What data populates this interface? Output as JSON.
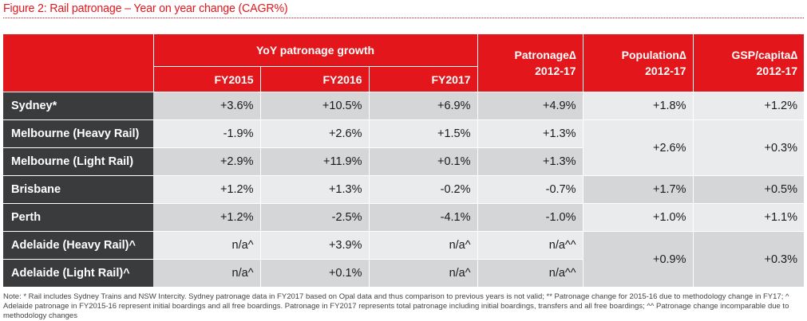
{
  "figure": {
    "title": "Figure 2: Rail patronage – Year on year change (CAGR%)"
  },
  "table": {
    "group_header": "YoY patronage growth",
    "columns": {
      "fy2015": "FY2015",
      "fy2016": "FY2016",
      "fy2017": "FY2017",
      "patronage_line1": "Patronage∆",
      "patronage_line2": "2012-17",
      "population_line1": "Population∆",
      "population_line2": "2012-17",
      "gsp_line1": "GSP/capita∆",
      "gsp_line2": "2012-17"
    },
    "rows": [
      {
        "label": "Sydney*",
        "fy2015": "+3.6%",
        "fy2016": "+10.5%",
        "fy2017": "+6.9%",
        "patronage": "+4.9%"
      },
      {
        "label": "Melbourne (Heavy Rail)",
        "fy2015": "-1.9%",
        "fy2016": "+2.6%",
        "fy2017": "+1.5%",
        "patronage": "+1.3%"
      },
      {
        "label": "Melbourne (Light Rail)",
        "fy2015": "+2.9%",
        "fy2016": "+11.9%",
        "fy2017": "+0.1%",
        "patronage": "+1.3%"
      },
      {
        "label": "Brisbane",
        "fy2015": "+1.2%",
        "fy2016": "+1.3%",
        "fy2017": "-0.2%",
        "patronage": "-0.7%"
      },
      {
        "label": "Perth",
        "fy2015": "+1.2%",
        "fy2016": "-2.5%",
        "fy2017": "-4.1%",
        "patronage": "-1.0%"
      },
      {
        "label": "Adelaide (Heavy Rail)^",
        "fy2015": "n/a^",
        "fy2016": "+3.9%",
        "fy2017": "n/a^",
        "patronage": "n/a^^"
      },
      {
        "label": "Adelaide (Light Rail)^",
        "fy2015": "n/a^",
        "fy2016": "+0.1%",
        "fy2017": "n/a^",
        "patronage": "n/a^^"
      }
    ],
    "population": {
      "sydney": "+1.8%",
      "melbourne": "+2.6%",
      "brisbane": "+1.7%",
      "perth": "+1.0%",
      "adelaide": "+0.9%"
    },
    "gsp": {
      "sydney": "+1.2%",
      "melbourne": "+0.3%",
      "brisbane": "+0.5%",
      "perth": "+1.1%",
      "adelaide": "+0.3%"
    }
  },
  "note": "Note: * Rail includes Sydney Trains and NSW Intercity. Sydney patronage data in FY2017 based on Opal data and thus comparison to previous years is not valid; ** Patronage change for 2015-16 due to methodology change in FY17; ^ Adelaide patronage in FY2015-16 represent initial boardings and all free boardings. Patronage in FY2017 represents total patronage including initial boardings, transfers and all free boardings; ^^ Patronage change incomparable due to methodology changes"
}
